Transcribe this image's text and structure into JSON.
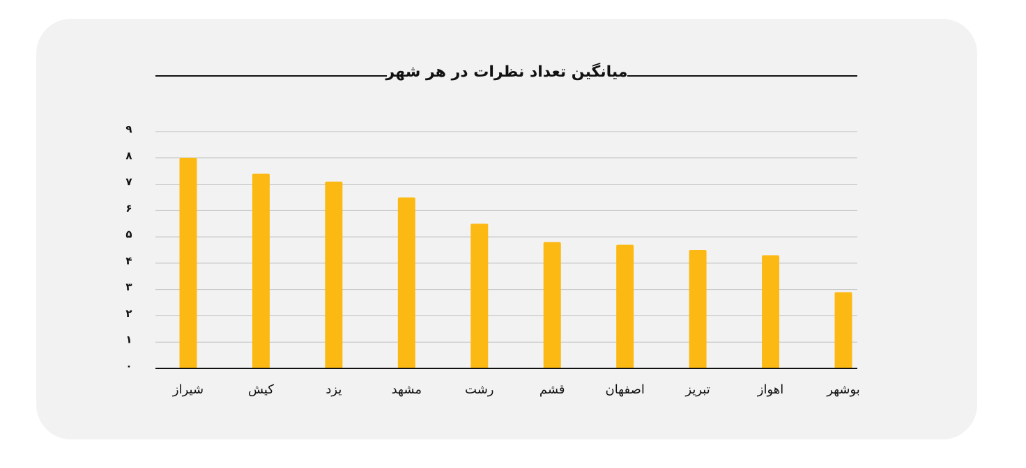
{
  "chart_data": {
    "type": "bar",
    "title": "میانگین تعداد نظرات در هر شهر",
    "categories": [
      "شیراز",
      "کیش",
      "یزد",
      "مشهد",
      "رشت",
      "قشم",
      "اصفهان",
      "تبریز",
      "اهواز",
      "بوشهر"
    ],
    "values": [
      8.0,
      7.4,
      7.1,
      6.5,
      5.5,
      4.8,
      4.7,
      4.5,
      4.3,
      2.9
    ],
    "color": "#fdb913",
    "ylim": [
      0,
      9
    ],
    "yticks": [
      {
        "value": 0,
        "label": "۰"
      },
      {
        "value": 1,
        "label": "۱"
      },
      {
        "value": 2,
        "label": "۲"
      },
      {
        "value": 3,
        "label": "۳"
      },
      {
        "value": 4,
        "label": "۴"
      },
      {
        "value": 5,
        "label": "۵"
      },
      {
        "value": 6,
        "label": "۶"
      },
      {
        "value": 7,
        "label": "۷"
      },
      {
        "value": 8,
        "label": "۸"
      },
      {
        "value": 9,
        "label": "۹"
      }
    ],
    "grid": true
  }
}
